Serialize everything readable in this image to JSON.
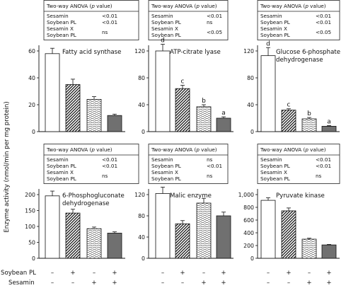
{
  "y_axis_label": "Enzyme activity (nmol/min per mg protein)",
  "conditions": {
    "rows": [
      {
        "label": "Soybean PL",
        "values": [
          "–",
          "+",
          "–",
          "+"
        ]
      },
      {
        "label": "Sesamin",
        "values": [
          "–",
          "–",
          "+",
          "+"
        ]
      }
    ]
  },
  "fills": [
    "#ffffff",
    "#ffffff",
    "#ffffff",
    "#707070"
  ],
  "patterns": [
    "none",
    "diagonal-hatch",
    "wave",
    "solid"
  ],
  "chart_data": [
    {
      "type": "bar",
      "title": "Fatty acid synthase",
      "categories": [
        "1",
        "2",
        "3",
        "4"
      ],
      "values": [
        58,
        35,
        24,
        12
      ],
      "errors": [
        4,
        4,
        2,
        1
      ],
      "ylim": [
        0,
        60
      ],
      "yticks": [
        0,
        20,
        40,
        60
      ],
      "letters": [
        "",
        "",
        "",
        ""
      ],
      "stats": {
        "header": "Two-way ANOVA (",
        "p": "p",
        "header_end": " value)",
        "rows": [
          {
            "name": "Sesamin",
            "value": "<0.01"
          },
          {
            "name": "Soybean PL",
            "value": "<0.01"
          },
          {
            "name": "Sesamin X",
            "value": ""
          },
          {
            "name": "Soybean PL",
            "value": "ns"
          }
        ]
      }
    },
    {
      "type": "bar",
      "title": "ATP-citrate lyase",
      "categories": [
        "1",
        "2",
        "3",
        "4"
      ],
      "values": [
        120,
        64,
        37,
        20
      ],
      "errors": [
        10,
        5,
        3,
        2
      ],
      "ylim": [
        0,
        120
      ],
      "yticks": [
        0,
        40,
        80,
        120
      ],
      "letters": [
        "d",
        "c",
        "b",
        "a"
      ],
      "stats": {
        "header": "Two-way ANOVA (",
        "p": "p",
        "header_end": " value)",
        "rows": [
          {
            "name": "Sesamin",
            "value": "<0.01"
          },
          {
            "name": "Soybean PL",
            "value": "ns"
          },
          {
            "name": "Sesamin X",
            "value": ""
          },
          {
            "name": "Soybean PL",
            "value": "<0.05"
          }
        ]
      }
    },
    {
      "type": "bar",
      "title": "Glucose 6-phosphate dehydrogenase",
      "title_lines": [
        "Glucose 6-phosphate",
        "dehydrogenase"
      ],
      "categories": [
        "1",
        "2",
        "3",
        "4"
      ],
      "values": [
        113,
        32,
        19,
        8
      ],
      "errors": [
        12,
        2,
        2,
        1
      ],
      "ylim": [
        0,
        120
      ],
      "yticks": [
        0,
        40,
        80,
        120
      ],
      "letters": [
        "d",
        "c",
        "b",
        "a"
      ],
      "stats": {
        "header": "Two-way ANOVA (",
        "p": "p",
        "header_end": " value)",
        "rows": [
          {
            "name": "Sesamin",
            "value": "<0.01"
          },
          {
            "name": "Soybean PL",
            "value": "<0.01"
          },
          {
            "name": "Sesamin X",
            "value": ""
          },
          {
            "name": "Soybean PL",
            "value": "<0.05"
          }
        ]
      }
    },
    {
      "type": "bar",
      "title": "6-Phosphogluconate dehydrogenase",
      "title_lines": [
        "6-Phosphogluconate",
        "dehydrogenase"
      ],
      "categories": [
        "1",
        "2",
        "3",
        "4"
      ],
      "values": [
        196,
        142,
        93,
        79
      ],
      "errors": [
        15,
        12,
        5,
        4
      ],
      "ylim": [
        0,
        200
      ],
      "yticks": [
        0,
        50,
        100,
        150,
        200
      ],
      "letters": [
        "",
        "",
        "",
        ""
      ],
      "stats": {
        "header": "Two-way ANOVA (",
        "p": "p",
        "header_end": " value)",
        "rows": [
          {
            "name": "Sesamin",
            "value": "<0.01"
          },
          {
            "name": "Soybean PL",
            "value": "<0.01"
          },
          {
            "name": "Sesamin X",
            "value": ""
          },
          {
            "name": "Soybean PL",
            "value": "ns"
          }
        ]
      }
    },
    {
      "type": "bar",
      "title": "Malic enzyme",
      "categories": [
        "1",
        "2",
        "3",
        "4"
      ],
      "values": [
        122,
        65,
        104,
        80
      ],
      "errors": [
        12,
        6,
        9,
        7
      ],
      "ylim": [
        0,
        120
      ],
      "yticks": [
        0,
        40,
        80,
        120
      ],
      "letters": [
        "",
        "",
        "",
        ""
      ],
      "stats": {
        "header": "Two-way ANOVA (",
        "p": "p",
        "header_end": " value)",
        "rows": [
          {
            "name": "Sesamin",
            "value": "ns"
          },
          {
            "name": "Soybean PL",
            "value": "<0.01"
          },
          {
            "name": "Sesamin X",
            "value": ""
          },
          {
            "name": "Soybean PL",
            "value": "ns"
          }
        ]
      }
    },
    {
      "type": "bar",
      "title": "Pyruvate kinase",
      "categories": [
        "1",
        "2",
        "3",
        "4"
      ],
      "values": [
        910,
        745,
        300,
        210
      ],
      "errors": [
        40,
        45,
        15,
        8
      ],
      "ylim": [
        0,
        1000
      ],
      "yticks": [
        0,
        200,
        400,
        600,
        800,
        1000
      ],
      "ytick_labels": [
        "0",
        "200",
        "400",
        "600",
        "800",
        "1,000"
      ],
      "letters": [
        "",
        "",
        "",
        ""
      ],
      "stats": {
        "header": "Two-way ANOVA (",
        "p": "p",
        "header_end": " value)",
        "rows": [
          {
            "name": "Sesamin",
            "value": "<0.01"
          },
          {
            "name": "Soybean PL",
            "value": "<0.01"
          },
          {
            "name": "Sesamin X",
            "value": ""
          },
          {
            "name": "Soybean PL",
            "value": "ns"
          }
        ]
      }
    }
  ]
}
